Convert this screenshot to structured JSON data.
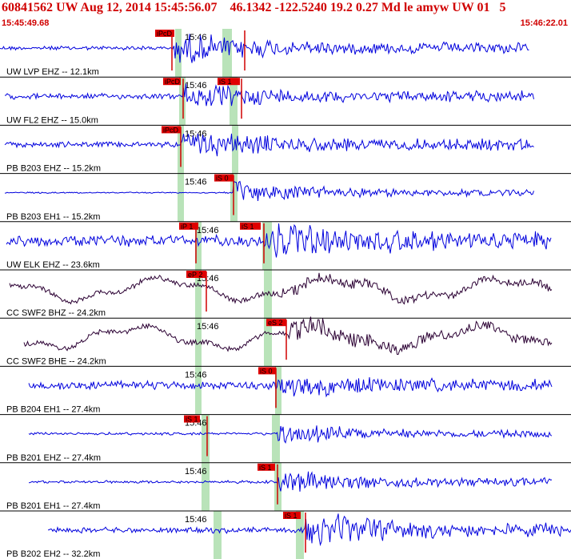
{
  "header": {
    "title": "60841562 UW Aug 12, 2014 15:45:56.07    46.1342 -122.5240 19.2 0.27 Md le amyw UW 01   5",
    "start_time": "15:45:49.68",
    "end_time": "15:46:22.01"
  },
  "minute_mark_label": "15:46",
  "colors": {
    "header_text": "#d00000",
    "trace_default": "#0000dd",
    "trace_broadband": "#2b0033",
    "pick_box": "#e00000",
    "pick_line": "#d00000",
    "green_band": "#b9e3b9",
    "separator": "#000000"
  },
  "channels": [
    {
      "label": "UW LVP EHZ -- 12.1km",
      "color": "blue",
      "picks": [
        {
          "text": "iPcD",
          "type": "P"
        },
        {
          "text": "",
          "type": "S"
        }
      ]
    },
    {
      "label": "UW FL2 EHZ -- 15.0km",
      "color": "blue",
      "picks": [
        {
          "text": "iPcD",
          "type": "P"
        },
        {
          "text": "iS 1",
          "type": "S"
        }
      ]
    },
    {
      "label": "PB B203 EHZ -- 15.2km",
      "color": "blue",
      "picks": [
        {
          "text": "iPcD",
          "type": "P"
        }
      ]
    },
    {
      "label": "PB B203 EH1 -- 15.2km",
      "color": "blue",
      "picks": [
        {
          "text": "iS 0",
          "type": "S"
        }
      ]
    },
    {
      "label": "UW ELK EHZ -- 23.6km",
      "color": "blue",
      "picks": [
        {
          "text": "iP 1",
          "type": "P"
        },
        {
          "text": "iS 1",
          "type": "S"
        }
      ]
    },
    {
      "label": "CC SWF2 BHZ -- 24.2km",
      "color": "dark",
      "picks": [
        {
          "text": "eP 2",
          "type": "P"
        }
      ]
    },
    {
      "label": "CC SWF2 BHE -- 24.2km",
      "color": "dark",
      "picks": [
        {
          "text": "eS 2",
          "type": "S"
        }
      ]
    },
    {
      "label": "PB B204 EH1 -- 27.4km",
      "color": "blue",
      "picks": [
        {
          "text": "iS 0",
          "type": "S"
        }
      ]
    },
    {
      "label": "PB B201 EHZ -- 27.4km",
      "color": "blue",
      "picks": [
        {
          "text": "iS 1",
          "type": "P"
        }
      ]
    },
    {
      "label": "PB B201 EH1 -- 27.4km",
      "color": "blue",
      "picks": [
        {
          "text": "iS 1",
          "type": "S"
        }
      ]
    },
    {
      "label": "PB B202 EH2 -- 32.2km",
      "color": "blue",
      "picks": [
        {
          "text": "iS 1",
          "type": "S"
        }
      ]
    }
  ]
}
